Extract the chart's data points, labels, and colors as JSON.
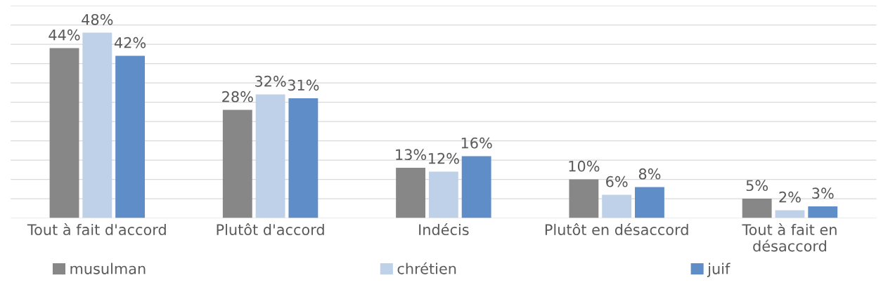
{
  "chart_data": {
    "type": "bar",
    "categories": [
      "Tout à fait d'accord",
      "Plutôt d'accord",
      "Indécis",
      "Plutôt en désaccord",
      "Tout à fait en\ndésaccord"
    ],
    "series": [
      {
        "name": "musulman",
        "color": "#878787",
        "values": [
          44,
          28,
          13,
          10,
          5
        ],
        "value_labels": [
          "44%",
          "28%",
          "13%",
          "10%",
          "5%"
        ]
      },
      {
        "name": "chrétien",
        "color": "#bed1e8",
        "values": [
          48,
          32,
          12,
          6,
          2
        ],
        "value_labels": [
          "48%",
          "32%",
          "12%",
          "6%",
          "2%"
        ]
      },
      {
        "name": "juif",
        "color": "#5f8dc7",
        "values": [
          42,
          31,
          16,
          8,
          3
        ],
        "value_labels": [
          "42%",
          "31%",
          "16%",
          "8%",
          "3%"
        ]
      }
    ],
    "ylim": [
      0,
      55
    ],
    "yticks": [
      {
        "value": 0,
        "label": null
      },
      {
        "value": 5,
        "label": null
      },
      {
        "value": 10,
        "label": null
      },
      {
        "value": 15,
        "label": null
      },
      {
        "value": 20,
        "label": null
      },
      {
        "value": 25,
        "label": null
      },
      {
        "value": 30,
        "label": null
      },
      {
        "value": 35,
        "label": null
      },
      {
        "value": 40,
        "label": null
      },
      {
        "value": 45,
        "label": null
      },
      {
        "value": 50,
        "label": null
      },
      {
        "value": 55,
        "label": null
      }
    ],
    "tick_labels": "x",
    "grid": "y",
    "legend": "bottom"
  }
}
